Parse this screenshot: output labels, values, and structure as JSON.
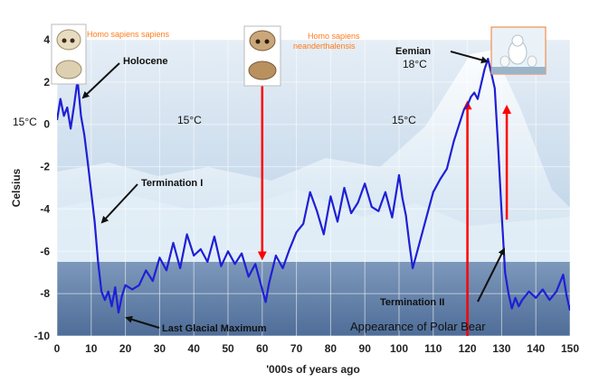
{
  "chart_data": {
    "type": "line",
    "title": "",
    "xlabel": "'000s of years ago",
    "ylabel": "Celsius",
    "xlim": [
      0,
      150
    ],
    "ylim": [
      -10,
      4
    ],
    "x_ticks": [
      "0",
      "10",
      "20",
      "30",
      "40",
      "50",
      "60",
      "70",
      "80",
      "90",
      "100",
      "110",
      "120",
      "130",
      "140",
      "150"
    ],
    "y_ticks": [
      "4",
      "2",
      "0",
      "-2",
      "-4",
      "-6",
      "-8",
      "-10"
    ],
    "grid": true,
    "series": [
      {
        "color": "#1f1fd6",
        "x": [
          0,
          1,
          2,
          3,
          4,
          5,
          6,
          7,
          8,
          9,
          10,
          11,
          12,
          13,
          14,
          15,
          16,
          17,
          18,
          19,
          20,
          22,
          24,
          26,
          28,
          30,
          32,
          34,
          36,
          38,
          40,
          42,
          44,
          46,
          48,
          50,
          52,
          54,
          56,
          58,
          60,
          61,
          62,
          64,
          66,
          68,
          70,
          72,
          74,
          76,
          78,
          80,
          82,
          84,
          86,
          88,
          90,
          92,
          94,
          96,
          98,
          100,
          101,
          102,
          103,
          104,
          106,
          108,
          110,
          112,
          114,
          116,
          118,
          119,
          120,
          121,
          122,
          123,
          124,
          125,
          126,
          127,
          128,
          129,
          130,
          131,
          132,
          133,
          134,
          135,
          136,
          138,
          140,
          142,
          144,
          146,
          148,
          149,
          150
        ],
        "y": [
          0.2,
          1.2,
          0.4,
          0.8,
          -0.2,
          0.9,
          2.1,
          0.4,
          -0.5,
          -1.8,
          -3.2,
          -4.6,
          -6.5,
          -7.9,
          -8.3,
          -7.9,
          -8.6,
          -7.7,
          -8.9,
          -8.1,
          -7.6,
          -7.8,
          -7.6,
          -6.9,
          -7.4,
          -6.3,
          -6.9,
          -5.6,
          -6.8,
          -5.2,
          -6.2,
          -5.9,
          -6.5,
          -5.3,
          -6.7,
          -6.0,
          -6.6,
          -6.1,
          -7.2,
          -6.6,
          -7.8,
          -8.4,
          -7.5,
          -6.2,
          -6.8,
          -5.9,
          -5.1,
          -4.7,
          -3.2,
          -4.1,
          -5.2,
          -3.4,
          -4.6,
          -3.0,
          -4.2,
          -3.7,
          -2.8,
          -3.9,
          -4.1,
          -3.2,
          -4.4,
          -2.4,
          -3.5,
          -4.3,
          -5.6,
          -6.8,
          -5.6,
          -4.4,
          -3.2,
          -2.6,
          -2.1,
          -0.8,
          0.2,
          0.7,
          0.9,
          1.3,
          1.5,
          1.2,
          1.9,
          2.6,
          3.1,
          2.4,
          1.7,
          -1.1,
          -4.2,
          -7.0,
          -8.0,
          -8.7,
          -8.2,
          -8.6,
          -8.3,
          -7.9,
          -8.2,
          -7.8,
          -8.3,
          -7.9,
          -7.1,
          -8.1,
          -8.8
        ]
      }
    ],
    "annotations": [
      {
        "text": "Holocene"
      },
      {
        "text": "Termination I"
      },
      {
        "text": "Last Glacial Maximum"
      },
      {
        "text": "Termination II"
      },
      {
        "text": "Appearance of Polar Bear"
      },
      {
        "text": "Eemian"
      },
      {
        "text": "18°C"
      },
      {
        "text": "15°C"
      },
      {
        "text": "15°C"
      },
      {
        "text": "15°C"
      },
      {
        "text": "Homo sapiens  sapiens"
      },
      {
        "text": "Homo sapiens"
      },
      {
        "text": "neanderthalensis"
      }
    ],
    "reference_lines": [
      {
        "x": 60,
        "y_from": 3.0,
        "y_to": -6.3,
        "color": "#ff0000",
        "direction": "down"
      },
      {
        "x": 120,
        "y_from": -10,
        "y_to": 1.0,
        "color": "#ff0000",
        "direction": "up"
      },
      {
        "x": 131.5,
        "y_from": -4.5,
        "y_to": 0.8,
        "color": "#ff0000",
        "direction": "up"
      }
    ],
    "colors": {
      "line": "#1f1fd6",
      "arrows_red": "#ff0000",
      "annotation_orange": "#ff7a1a",
      "sky": "#cfe0ef",
      "ice": "#eef6fb",
      "water": "#5f7fa8"
    },
    "background": "iceberg photograph"
  }
}
